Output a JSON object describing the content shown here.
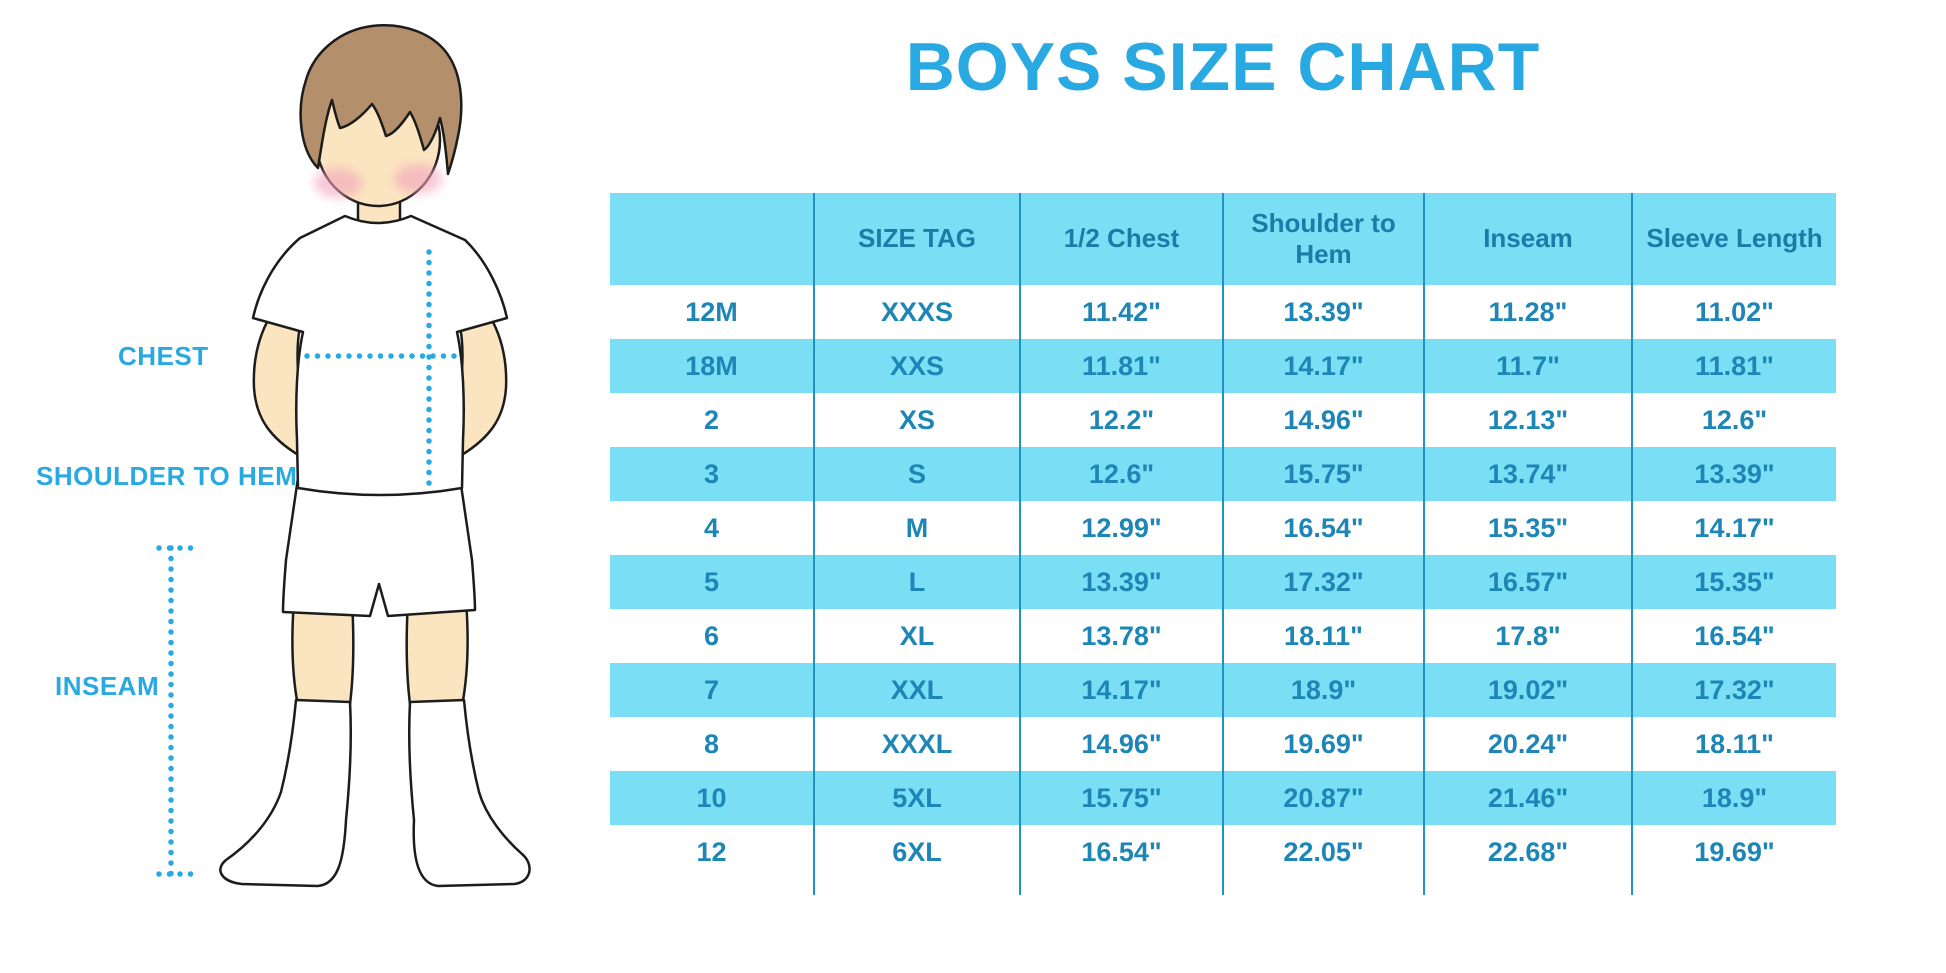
{
  "title": "BOYS SIZE CHART",
  "colors": {
    "accent_blue": "#29A9E1",
    "table_header_bg": "#7ADFF5",
    "table_row_highlight": "#7ADFF5",
    "table_grid_line": "#1E93C4",
    "table_text": "#1E86B6",
    "skin": "#FBE5C0",
    "hair": "#B3906B",
    "cheek": "#F2A3BC"
  },
  "figure": {
    "labels": {
      "chest": "CHEST",
      "shoulder_to_hem": "SHOULDER TO HEM",
      "inseam": "INSEAM"
    }
  },
  "table": {
    "headers": [
      "",
      "SIZE TAG",
      "1/2 Chest",
      "Shoulder to Hem",
      "Inseam",
      "Sleeve Length"
    ],
    "rows": [
      [
        "12M",
        "XXXS",
        "11.42\"",
        "13.39\"",
        "11.28\"",
        "11.02\""
      ],
      [
        "18M",
        "XXS",
        "11.81\"",
        "14.17\"",
        "11.7\"",
        "11.81\""
      ],
      [
        "2",
        "XS",
        "12.2\"",
        "14.96\"",
        "12.13\"",
        "12.6\""
      ],
      [
        "3",
        "S",
        "12.6\"",
        "15.75\"",
        "13.74\"",
        "13.39\""
      ],
      [
        "4",
        "M",
        "12.99\"",
        "16.54\"",
        "15.35\"",
        "14.17\""
      ],
      [
        "5",
        "L",
        "13.39\"",
        "17.32\"",
        "16.57\"",
        "15.35\""
      ],
      [
        "6",
        "XL",
        "13.78\"",
        "18.11\"",
        "17.8\"",
        "16.54\""
      ],
      [
        "7",
        "XXL",
        "14.17\"",
        "18.9\"",
        "19.02\"",
        "17.32\""
      ],
      [
        "8",
        "XXXL",
        "14.96\"",
        "19.69\"",
        "20.24\"",
        "18.11\""
      ],
      [
        "10",
        "5XL",
        "15.75\"",
        "20.87\"",
        "21.46\"",
        "18.9\""
      ],
      [
        "12",
        "6XL",
        "16.54\"",
        "22.05\"",
        "22.68\"",
        "19.69\""
      ]
    ]
  }
}
